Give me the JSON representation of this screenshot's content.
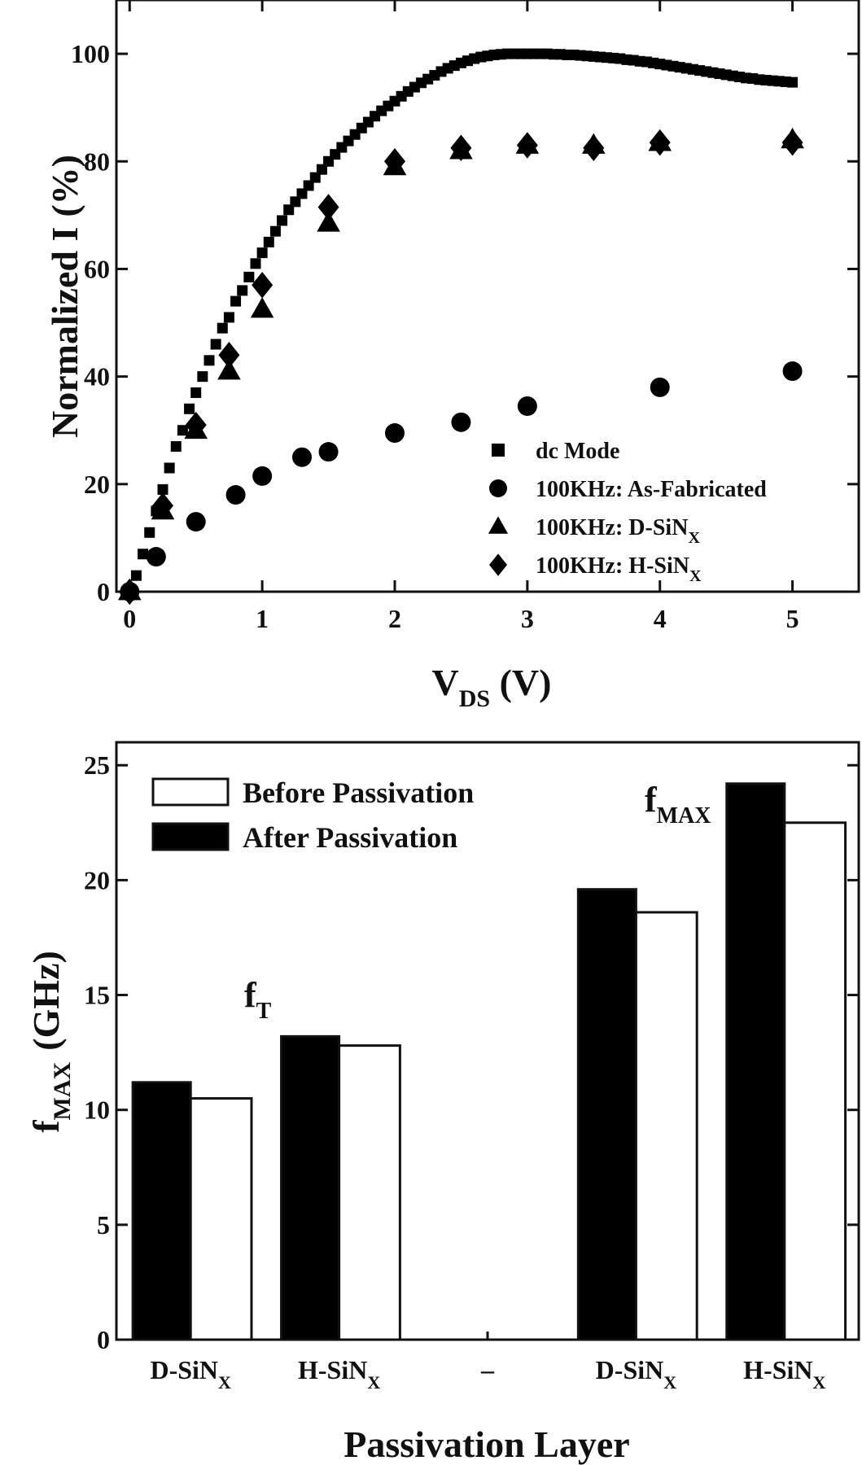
{
  "chart_data": [
    {
      "type": "scatter",
      "title": "",
      "xlabel": "V_DS (V)",
      "xlabel_main": "V",
      "xlabel_sub": "DS",
      "xlabel_unit": " (V)",
      "ylabel": "Normalized I (%)",
      "ylabel_main": "Normalized I",
      "ylabel_unit": "(%)",
      "xlim": [
        -0.1,
        5.5
      ],
      "ylim": [
        0,
        110
      ],
      "xticks": [
        0,
        1,
        2,
        3,
        4,
        5
      ],
      "yticks": [
        0,
        20,
        40,
        60,
        80,
        100
      ],
      "legend_position": "bottom-right",
      "series": [
        {
          "name": "dc Mode",
          "name_main": "dc Mode",
          "name_sub": "",
          "marker": "square",
          "x": [
            0.0,
            0.05,
            0.1,
            0.15,
            0.2,
            0.25,
            0.3,
            0.35,
            0.4,
            0.45,
            0.5,
            0.55,
            0.6,
            0.65,
            0.7,
            0.75,
            0.8,
            0.85,
            0.9,
            0.95,
            1.0,
            1.05,
            1.1,
            1.15,
            1.2,
            1.25,
            1.3,
            1.35,
            1.4,
            1.45,
            1.5,
            1.55,
            1.6,
            1.65,
            1.7,
            1.75,
            1.8,
            1.85,
            1.9,
            1.95,
            2.0,
            2.05,
            2.1,
            2.15,
            2.2,
            2.25,
            2.3,
            2.35,
            2.4,
            2.45,
            2.5,
            2.55,
            2.6,
            2.65,
            2.7,
            2.75,
            2.8,
            2.85,
            2.9,
            2.95,
            3.0,
            3.05,
            3.1,
            3.15,
            3.2,
            3.25,
            3.3,
            3.35,
            3.4,
            3.45,
            3.5,
            3.55,
            3.6,
            3.65,
            3.7,
            3.75,
            3.8,
            3.85,
            3.9,
            3.95,
            4.0,
            4.05,
            4.1,
            4.15,
            4.2,
            4.25,
            4.3,
            4.35,
            4.4,
            4.45,
            4.5,
            4.55,
            4.6,
            4.65,
            4.7,
            4.75,
            4.8,
            4.85,
            4.9,
            4.95,
            5.0
          ],
          "y": [
            0,
            3,
            7,
            11,
            15,
            19,
            23,
            27,
            30,
            34,
            37,
            40,
            43,
            46,
            49,
            51,
            54,
            56,
            58.5,
            61,
            63,
            65,
            67,
            69,
            71,
            72.5,
            74,
            75.5,
            77,
            78.5,
            80,
            81.3,
            82.6,
            83.8,
            85,
            86.2,
            87.3,
            88.4,
            89.4,
            90.3,
            91.2,
            92.1,
            93,
            93.8,
            94.6,
            95.3,
            96,
            96.7,
            97.3,
            97.8,
            98.3,
            98.7,
            99.1,
            99.4,
            99.6,
            99.8,
            99.9,
            100,
            100,
            100,
            100,
            100,
            100,
            100,
            99.9,
            99.9,
            99.8,
            99.8,
            99.7,
            99.6,
            99.5,
            99.4,
            99.3,
            99.2,
            99.1,
            98.9,
            98.8,
            98.6,
            98.5,
            98.3,
            98.1,
            97.9,
            97.7,
            97.5,
            97.3,
            97.1,
            96.9,
            96.7,
            96.5,
            96.3,
            96.1,
            95.9,
            95.7,
            95.5,
            95.4,
            95.2,
            95.1,
            95.0,
            94.9,
            94.8,
            94.7
          ]
        },
        {
          "name": "100KHz: As-Fabricated",
          "name_main": "100KHz: As-Fabricated",
          "name_sub": "",
          "marker": "circle",
          "x": [
            0,
            0.2,
            0.5,
            0.8,
            1.0,
            1.3,
            1.5,
            2.0,
            2.5,
            3.0,
            4.0,
            5.0
          ],
          "y": [
            0,
            6.5,
            13,
            18,
            21.5,
            25,
            26,
            29.5,
            31.5,
            34.5,
            38,
            41
          ]
        },
        {
          "name": "100KHz: D-SiN_X",
          "name_main": "100KHz: D-SiN",
          "name_sub": "X",
          "marker": "triangle",
          "x": [
            0,
            0.25,
            0.5,
            0.75,
            1.0,
            1.5,
            2.0,
            2.5,
            3.0,
            3.5,
            4.0,
            5.0
          ],
          "y": [
            0,
            15,
            30,
            41,
            52.5,
            68.5,
            79,
            82,
            83,
            83,
            83.5,
            84
          ]
        },
        {
          "name": "100KHz: H-SiN_X",
          "name_main": "100KHz: H-SiN",
          "name_sub": "X",
          "marker": "diamond",
          "x": [
            0,
            0.25,
            0.5,
            0.75,
            1.0,
            1.5,
            2.0,
            2.5,
            3.0,
            3.5,
            4.0,
            5.0
          ],
          "y": [
            0,
            16,
            31,
            44,
            57,
            71.5,
            80,
            82.5,
            83,
            82.5,
            83.5,
            83.5
          ]
        }
      ]
    },
    {
      "type": "bar",
      "title": "",
      "xlabel": "Passivation Layer",
      "ylabel": "f_T, f_MAX (GHz)",
      "ylabel_f": "f",
      "ylabel_sub": "MAX",
      "ylabel_unit": "(GHz)",
      "ylim": [
        0,
        26
      ],
      "yticks": [
        0,
        5,
        10,
        15,
        20,
        25
      ],
      "legend_position": "top-left",
      "categories": [
        {
          "main": "D-SiN",
          "sub": "X"
        },
        {
          "main": "H-SiN",
          "sub": "X"
        },
        {
          "main": "–",
          "sub": ""
        },
        {
          "main": "D-SiN",
          "sub": "X"
        },
        {
          "main": "H-SiN",
          "sub": "X"
        }
      ],
      "series": [
        {
          "name": "Before Passivation",
          "values": [
            10.5,
            12.8,
            null,
            18.6,
            22.5
          ],
          "fill": "#ffffff"
        },
        {
          "name": "After Passivation",
          "values": [
            11.2,
            13.2,
            null,
            19.6,
            24.2
          ],
          "fill": "#000000"
        }
      ],
      "annotations": [
        {
          "main": "f",
          "sub": "T",
          "near_category": 1
        },
        {
          "main": "f",
          "sub": "MAX",
          "near_category": 4
        }
      ]
    }
  ]
}
